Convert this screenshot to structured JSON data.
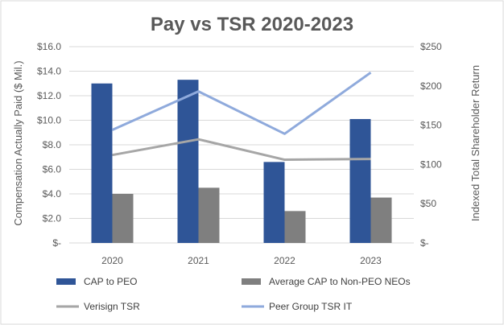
{
  "chart_data": {
    "type": "bar",
    "title": "Pay vs TSR 2020-2023",
    "categories": [
      "2020",
      "2021",
      "2022",
      "2023"
    ],
    "y_left": {
      "label": "Compensation Actually Paid ($ Mil.)",
      "range": [
        0,
        16
      ],
      "ticks": [
        "$-",
        "$2.0",
        "$4.0",
        "$6.0",
        "$8.0",
        "$10.0",
        "$12.0",
        "$14.0",
        "$16.0"
      ]
    },
    "y_right": {
      "label": "Indexed Total Shareholder Return",
      "range": [
        0,
        250
      ],
      "ticks": [
        "$-",
        "$50",
        "$100",
        "$150",
        "$200",
        "$250"
      ]
    },
    "series": [
      {
        "name": "CAP to PEO",
        "type": "bar",
        "axis": "left",
        "color": "#2F5597",
        "values": [
          13.0,
          13.3,
          6.6,
          10.1
        ]
      },
      {
        "name": "Average CAP to Non-PEO NEOs",
        "type": "bar",
        "axis": "left",
        "color": "#7F7F7F",
        "values": [
          4.0,
          4.5,
          2.6,
          3.7
        ]
      },
      {
        "name": "Verisign TSR",
        "type": "line",
        "axis": "right",
        "color": "#A6A6A6",
        "values": [
          112,
          132,
          106,
          107
        ]
      },
      {
        "name": "Peer Group TSR IT",
        "type": "line",
        "axis": "right",
        "color": "#8FAADC",
        "values": [
          144,
          193,
          139,
          217
        ]
      }
    ],
    "grid": true,
    "legend_position": "bottom"
  }
}
